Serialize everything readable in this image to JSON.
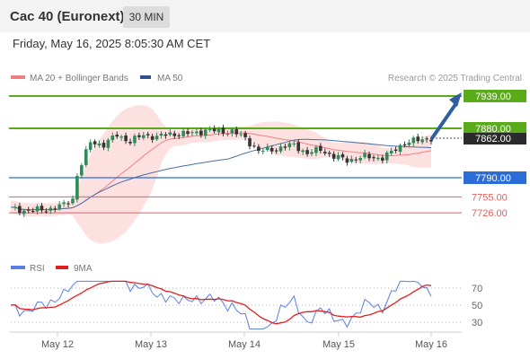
{
  "header": {
    "title": "Cac 40 (Euronext)",
    "timeframe": "30 MIN"
  },
  "datetime": "Friday, May 16, 2025 8:05:30 AM CET",
  "colors": {
    "up": "#2e8b57",
    "down": "#333333",
    "ma20": "#f08080",
    "bollinger_fill": "#fde0e0",
    "ma50": "#4a6fa5",
    "resistance": "#5aab1a",
    "support_blue": "#2b6cd6",
    "support_red": "#e06060",
    "arrow": "#2f5fa0",
    "rsi": "#5b7fe0",
    "rsi_ma": "#e02020"
  },
  "chart_data": [
    {
      "type": "candlestick",
      "legend": [
        {
          "label": "MA 20 + Bollinger Bands",
          "color": "#f08080"
        },
        {
          "label": "MA 50",
          "color": "#2f4f8f"
        }
      ],
      "watermark": "Research © 2025 Trading Central",
      "x_tick_labels": [
        "May 12",
        "May 13",
        "May 14",
        "May 15",
        "May 16"
      ],
      "last_price": "7862.00",
      "levels": [
        {
          "value": 7939.0,
          "label": "7939.00",
          "kind": "resistance",
          "color": "#5aab1a"
        },
        {
          "value": 7880.0,
          "label": "7880.00",
          "kind": "resistance",
          "color": "#5aab1a"
        },
        {
          "value": 7790.0,
          "label": "7790.00",
          "kind": "support",
          "color": "#2b6cd6"
        },
        {
          "value": 7755.0,
          "label": "7755.00",
          "kind": "support",
          "color": "#e06060"
        },
        {
          "value": 7726.0,
          "label": "7726.00",
          "kind": "support",
          "color": "#e06060"
        }
      ],
      "target_arrow": {
        "from": 7862,
        "to": 7939
      },
      "ylim": [
        7690,
        7960
      ],
      "key_closes": [
        {
          "time": "May 9 late",
          "approx_value": 7735
        },
        {
          "time": "May 12 open",
          "approx_value": 7790
        },
        {
          "time": "May 12 mid",
          "approx_value": 7855
        },
        {
          "time": "May 13",
          "approx_value": 7865
        },
        {
          "time": "May 14 open",
          "approx_value": 7875
        },
        {
          "time": "May 14 late",
          "approx_value": 7840
        },
        {
          "time": "May 15",
          "approx_value": 7818
        },
        {
          "time": "May 16",
          "approx_value": 7862
        }
      ]
    },
    {
      "type": "line",
      "legend": [
        {
          "label": "RSI",
          "color": "#5b7fe0"
        },
        {
          "label": "9MA",
          "color": "#e02020"
        }
      ],
      "y_tick_labels": [
        "70",
        "50",
        "30"
      ],
      "ylim": [
        20,
        80
      ],
      "key_values": [
        {
          "time": "May 12",
          "approx_rsi": 62
        },
        {
          "time": "May 13",
          "approx_rsi": 57
        },
        {
          "time": "May 14",
          "approx_rsi": 58
        },
        {
          "time": "May 14 late",
          "approx_rsi": 35
        },
        {
          "time": "May 15",
          "approx_rsi": 45
        },
        {
          "time": "May 16",
          "approx_rsi": 65
        }
      ]
    }
  ]
}
